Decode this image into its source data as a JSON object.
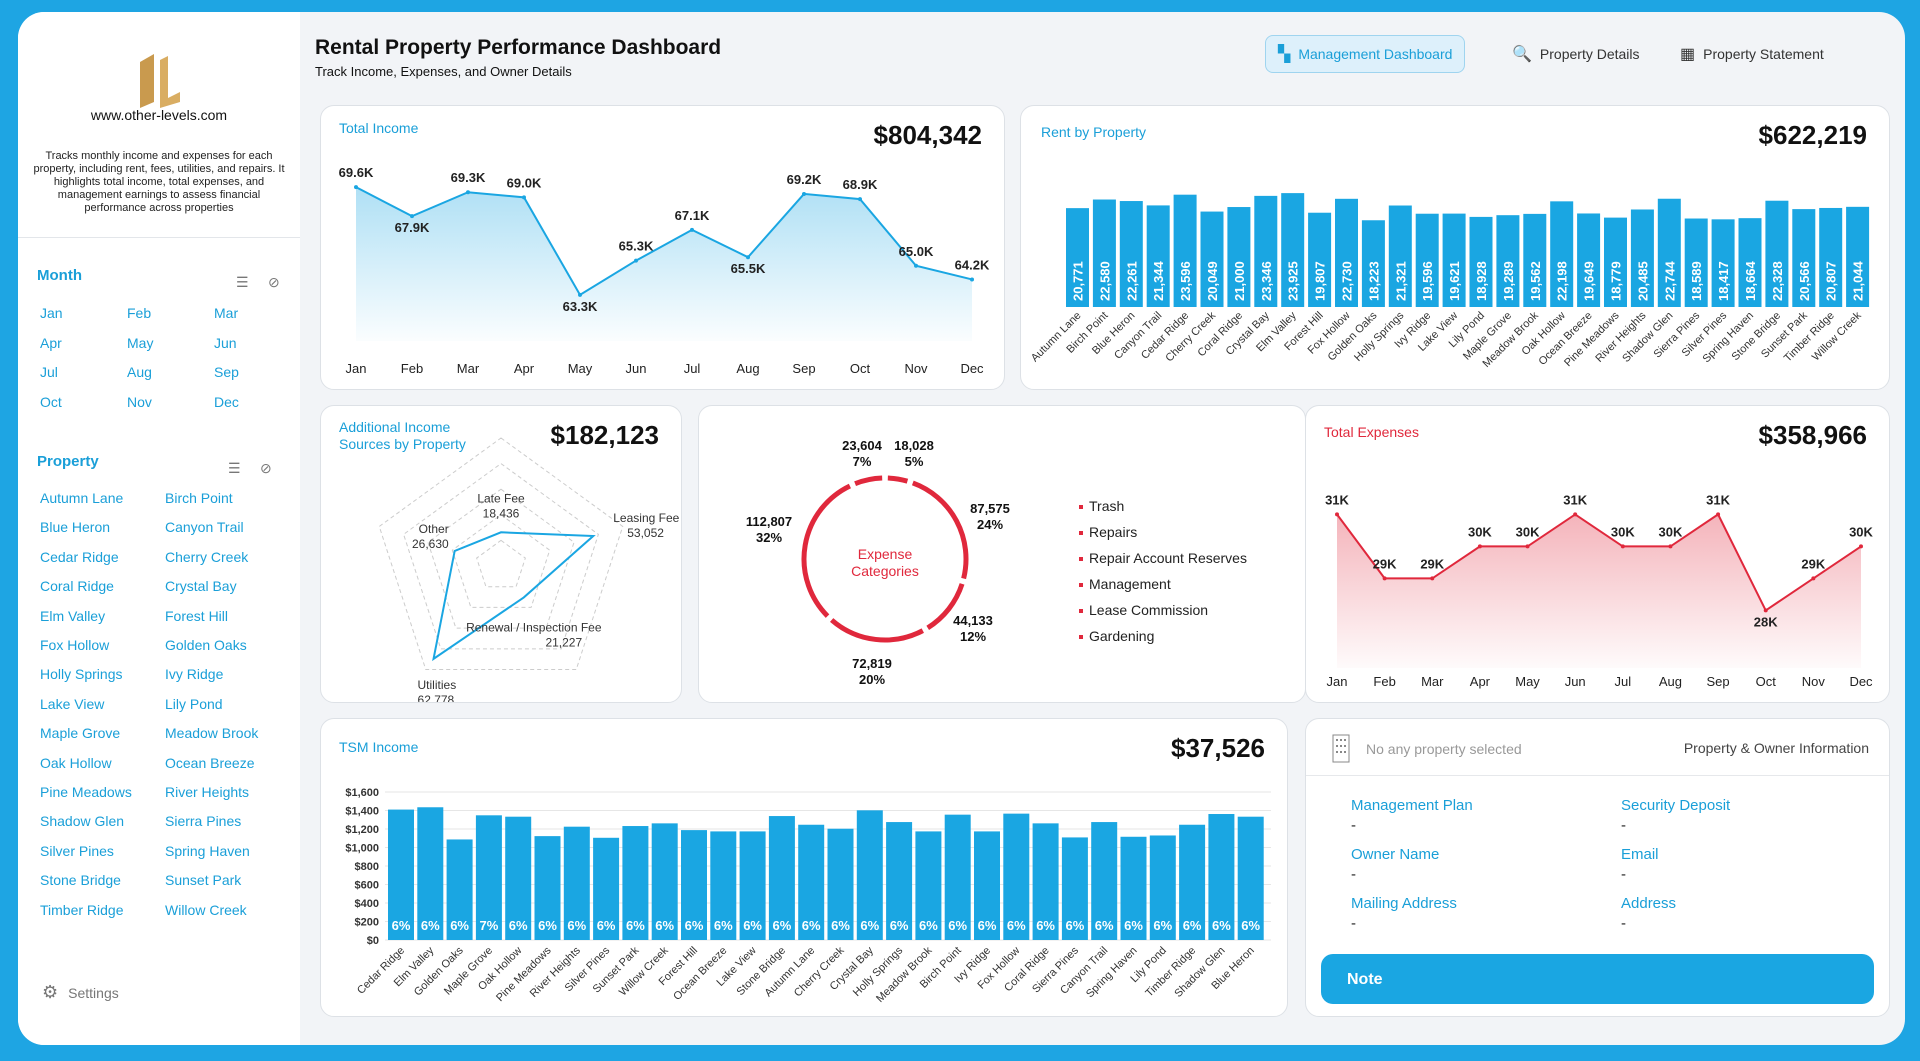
{
  "brand": {
    "url": "www.other-levels.com",
    "description": "Tracks monthly income and expenses for each property, including rent, fees, utilities, and repairs. It highlights total income, total expenses, and management earnings to assess financial performance across properties"
  },
  "header": {
    "title": "Rental Property Performance Dashboard",
    "subtitle": "Track Income, Expenses, and Owner Details"
  },
  "nav": [
    {
      "label": "Management Dashboard",
      "icon": "dashboard-icon",
      "active": true
    },
    {
      "label": "Property Details",
      "icon": "search-chart-icon"
    },
    {
      "label": "Property Statement",
      "icon": "table-icon"
    }
  ],
  "sidebar": {
    "month_title": "Month",
    "property_title": "Property",
    "settings": "Settings",
    "months": [
      "Jan",
      "Feb",
      "Mar",
      "Apr",
      "May",
      "Jun",
      "Jul",
      "Aug",
      "Sep",
      "Oct",
      "Nov",
      "Dec"
    ],
    "properties": [
      "Autumn Lane",
      "Birch Point",
      "Blue Heron",
      "Canyon Trail",
      "Cedar Ridge",
      "Cherry Creek",
      "Coral Ridge",
      "Crystal Bay",
      "Elm Valley",
      "Forest Hill",
      "Fox Hollow",
      "Golden Oaks",
      "Holly Springs",
      "Ivy Ridge",
      "Lake View",
      "Lily Pond",
      "Maple Grove",
      "Meadow Brook",
      "Oak Hollow",
      "Ocean Breeze",
      "Pine Meadows",
      "River Heights",
      "Shadow Glen",
      "Sierra Pines",
      "Silver Pines",
      "Spring Haven",
      "Stone Bridge",
      "Sunset Park",
      "Timber Ridge",
      "Willow Creek"
    ]
  },
  "colors": {
    "accent": "#1aa6e2",
    "expense": "#e0283c"
  },
  "cards": {
    "income": {
      "title": "Total Income",
      "total": "$804,342"
    },
    "rent": {
      "title": "Rent by Property",
      "total": "$622,219"
    },
    "additional": {
      "title": "Additional Income\nSources by Property",
      "total": "$182,123"
    },
    "expense_cat": {
      "center": "Expense\nCategories"
    },
    "expenses": {
      "title": "Total Expenses",
      "total": "$358,966"
    },
    "tsm": {
      "title": "TSM Income",
      "total": "$37,526"
    }
  },
  "chart_data": [
    {
      "id": "income",
      "type": "area",
      "x": [
        "Jan",
        "Feb",
        "Mar",
        "Apr",
        "May",
        "Jun",
        "Jul",
        "Aug",
        "Sep",
        "Oct",
        "Nov",
        "Dec"
      ],
      "values": [
        69600,
        67900,
        69300,
        69000,
        63300,
        65300,
        67100,
        65500,
        69200,
        68900,
        65000,
        64200
      ],
      "labels": [
        "69.6K",
        "67.9K",
        "69.3K",
        "69.0K",
        "63.3K",
        "65.3K",
        "67.1K",
        "65.5K",
        "69.2K",
        "68.9K",
        "65.0K",
        "64.2K"
      ]
    },
    {
      "id": "rent",
      "type": "bar",
      "categories": [
        "Autumn Lane",
        "Birch Point",
        "Blue Heron",
        "Canyon Trail",
        "Cedar Ridge",
        "Cherry Creek",
        "Coral Ridge",
        "Crystal Bay",
        "Elm Valley",
        "Forest Hill",
        "Fox Hollow",
        "Golden Oaks",
        "Holly Springs",
        "Ivy Ridge",
        "Lake View",
        "Lily Pond",
        "Maple Grove",
        "Meadow Brook",
        "Oak Hollow",
        "Ocean Breeze",
        "Pine Meadows",
        "River Heights",
        "Shadow Glen",
        "Sierra Pines",
        "Silver Pines",
        "Spring Haven",
        "Stone Bridge",
        "Sunset Park",
        "Timber Ridge",
        "Willow Creek"
      ],
      "values": [
        20771,
        22580,
        22261,
        21344,
        23596,
        20049,
        21000,
        23346,
        23925,
        19807,
        22730,
        18223,
        21321,
        19596,
        19621,
        18928,
        19289,
        19562,
        22198,
        19649,
        18779,
        20485,
        22744,
        18589,
        18417,
        18664,
        22328,
        20566,
        20807,
        21044
      ]
    },
    {
      "id": "additional",
      "type": "radar",
      "axes": [
        "Late Fee",
        "Leasing Fee",
        "Renewal / Inspection Fee",
        "Utilities",
        "Other"
      ],
      "values": [
        18436,
        53052,
        21227,
        62778,
        26630
      ],
      "labels": [
        "18,436",
        "53,052",
        "21,227",
        "62,778",
        "26,630"
      ]
    },
    {
      "id": "expense_cat",
      "type": "pie",
      "donut": true,
      "slices": [
        {
          "value": 18028,
          "label": "18,028",
          "pct": "5%"
        },
        {
          "value": 87575,
          "label": "87,575",
          "pct": "24%"
        },
        {
          "value": 44133,
          "label": "44,133",
          "pct": "12%"
        },
        {
          "value": 72819,
          "label": "72,819",
          "pct": "20%"
        },
        {
          "value": 112807,
          "label": "112,807",
          "pct": "32%"
        },
        {
          "value": 23604,
          "label": "23,604",
          "pct": "7%"
        }
      ],
      "legend": [
        "Trash",
        "Repairs",
        "Repair Account Reserves",
        "Management",
        "Lease Commission",
        "Gardening"
      ]
    },
    {
      "id": "expenses",
      "type": "area",
      "x": [
        "Jan",
        "Feb",
        "Mar",
        "Apr",
        "May",
        "Jun",
        "Jul",
        "Aug",
        "Sep",
        "Oct",
        "Nov",
        "Dec"
      ],
      "values": [
        31000,
        29000,
        29000,
        30000,
        30000,
        31000,
        30000,
        30000,
        31000,
        28000,
        29000,
        30000
      ],
      "labels": [
        "31K",
        "29K",
        "29K",
        "30K",
        "30K",
        "31K",
        "30K",
        "30K",
        "31K",
        "28K",
        "29K",
        "30K"
      ]
    },
    {
      "id": "tsm",
      "type": "bar",
      "ylim": [
        0,
        1600
      ],
      "yticks": [
        "$0",
        "$200",
        "$400",
        "$600",
        "$800",
        "$1,000",
        "$1,200",
        "$1,400",
        "$1,600"
      ],
      "categories": [
        "Cedar Ridge",
        "Elm Valley",
        "Golden Oaks",
        "Maple Grove",
        "Oak Hollow",
        "Pine Meadows",
        "River Heights",
        "Silver Pines",
        "Sunset Park",
        "Willow Creek",
        "Forest Hill",
        "Ocean Breeze",
        "Lake View",
        "Stone Bridge",
        "Autumn Lane",
        "Cherry Creek",
        "Crystal Bay",
        "Holly Springs",
        "Meadow Brook",
        "Birch Point",
        "Ivy Ridge",
        "Fox Hollow",
        "Coral Ridge",
        "Sierra Pines",
        "Canyon Trail",
        "Spring Haven",
        "Lily Pond",
        "Timber Ridge",
        "Shadow Glen",
        "Blue Heron"
      ],
      "values": [
        1410,
        1435,
        1087,
        1348,
        1333,
        1123,
        1225,
        1105,
        1232,
        1261,
        1188,
        1174,
        1174,
        1340,
        1246,
        1203,
        1402,
        1275,
        1174,
        1355,
        1174,
        1366,
        1261,
        1109,
        1275,
        1116,
        1130,
        1246,
        1362,
        1333
      ],
      "labels": [
        "6%",
        "6%",
        "6%",
        "7%",
        "6%",
        "6%",
        "6%",
        "6%",
        "6%",
        "6%",
        "6%",
        "6%",
        "6%",
        "6%",
        "6%",
        "6%",
        "6%",
        "6%",
        "6%",
        "6%",
        "6%",
        "6%",
        "6%",
        "6%",
        "6%",
        "6%",
        "6%",
        "6%",
        "6%",
        "6%"
      ]
    }
  ],
  "info": {
    "empty": "No any property selected",
    "title": "Property & Owner Information",
    "fields": [
      {
        "label": "Management Plan",
        "value": "-"
      },
      {
        "label": "Security Deposit",
        "value": "-"
      },
      {
        "label": "Owner Name",
        "value": "-"
      },
      {
        "label": "Email",
        "value": "-"
      },
      {
        "label": "Mailing Address",
        "value": "-"
      },
      {
        "label": "Address",
        "value": "-"
      }
    ],
    "note": "Note"
  }
}
